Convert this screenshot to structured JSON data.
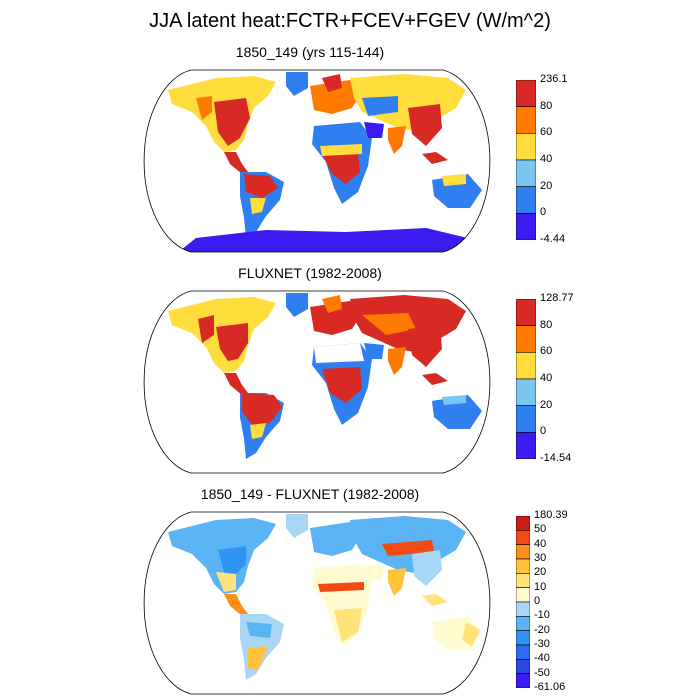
{
  "title": "JJA latent heat:FCTR+FCEV+FGEV (W/m^2)",
  "colors": {
    "blue_dark": "#3a1cf0",
    "blue": "#2f7ff0",
    "light_blue": "#7cc6f2",
    "yellow": "#ffdd3c",
    "orange": "#ff7a00",
    "red": "#d72a24",
    "diff_scale": [
      "#3a1cf0",
      "#2f45e6",
      "#2e6bf2",
      "#2e93f2",
      "#5ab4f4",
      "#a8d6f4",
      "#fffbd0",
      "#ffe27a",
      "#ffc23a",
      "#ff8f1a",
      "#f24a14",
      "#c81e16"
    ]
  },
  "panels": [
    {
      "title": "1850_149 (yrs 115-144)",
      "colorbar": {
        "labels": [
          "236.1",
          "80",
          "60",
          "40",
          "20",
          "0",
          "-4.44"
        ],
        "colors": [
          "#d72a24",
          "#ff7a00",
          "#ffdd3c",
          "#7cc6f2",
          "#2f7ff0",
          "#3a1cf0"
        ]
      }
    },
    {
      "title": "FLUXNET (1982-2008)",
      "colorbar": {
        "labels": [
          "128.77",
          "80",
          "60",
          "40",
          "20",
          "0",
          "-14.54"
        ],
        "colors": [
          "#d72a24",
          "#ff7a00",
          "#ffdd3c",
          "#7cc6f2",
          "#2f7ff0",
          "#3a1cf0"
        ]
      }
    },
    {
      "title": "1850_149 - FLUXNET (1982-2008)",
      "colorbar": {
        "labels": [
          "180.39",
          "50",
          "40",
          "30",
          "20",
          "10",
          "0",
          "-10",
          "-20",
          "-30",
          "-40",
          "-50",
          "-61.06"
        ],
        "colors": [
          "#c81e16",
          "#f24a14",
          "#ff8f1a",
          "#ffc23a",
          "#ffe27a",
          "#fffbd0",
          "#a8d6f4",
          "#5ab4f4",
          "#2e93f2",
          "#2e6bf2",
          "#2f45e6",
          "#3a1cf0"
        ]
      }
    }
  ]
}
